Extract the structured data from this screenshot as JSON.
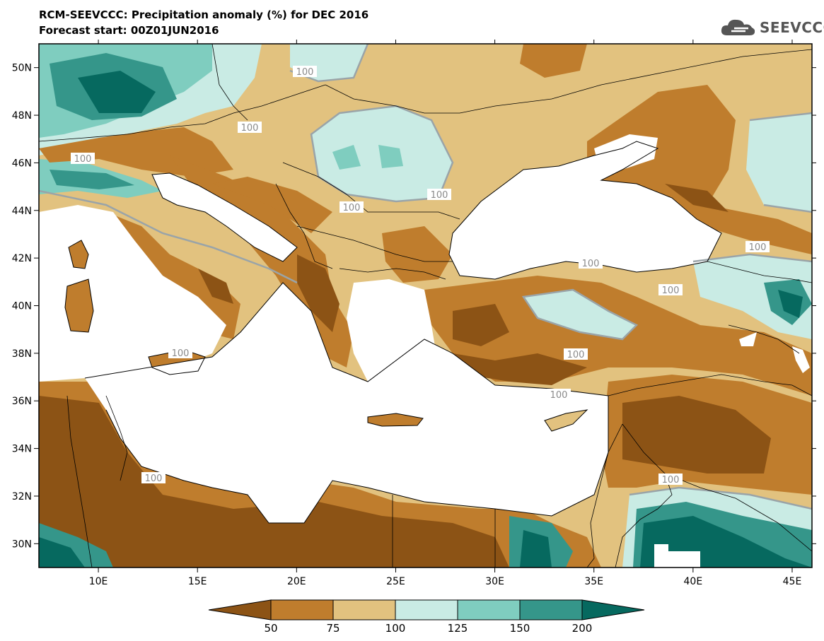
{
  "header": {
    "title_line1": "RCM-SEEVCCC: Precipitation anomaly (%) for DEC 2016",
    "title_line2": "Forecast start: 00Z01JUN2016"
  },
  "logo": {
    "text": "SEEVCCC",
    "icon": "cloud-icon"
  },
  "map": {
    "lon_ticks": [
      "10E",
      "15E",
      "20E",
      "25E",
      "30E",
      "35E",
      "40E",
      "45E"
    ],
    "lat_ticks": [
      "50N",
      "48N",
      "46N",
      "44N",
      "42N",
      "40N",
      "38N",
      "36N",
      "34N",
      "32N",
      "30N"
    ],
    "contour_label": "100",
    "extent": {
      "lon": [
        7,
        46
      ],
      "lat": [
        29,
        51
      ]
    }
  },
  "colorbar": {
    "boundaries": [
      "50",
      "75",
      "100",
      "125",
      "150",
      "200"
    ],
    "colors": [
      "#8c5315",
      "#bf7d2d",
      "#e2c27f",
      "#c9ebe4",
      "#7fcdbf",
      "#35968a",
      "#06695f"
    ]
  }
}
